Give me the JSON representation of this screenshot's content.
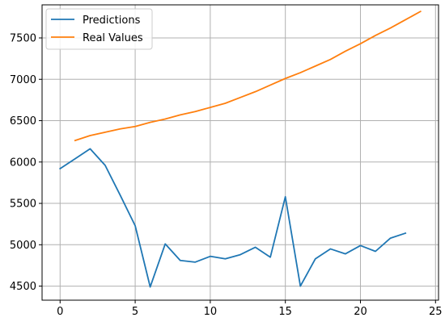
{
  "chart_data": {
    "type": "line",
    "title": "",
    "xlabel": "",
    "ylabel": "",
    "xlim": [
      -1.2,
      25.2
    ],
    "ylim": [
      4330,
      7900
    ],
    "xticks": [
      0,
      5,
      10,
      15,
      20,
      25
    ],
    "yticks": [
      4500,
      5000,
      5500,
      6000,
      6500,
      7000,
      7500
    ],
    "xtick_labels": [
      "0",
      "5",
      "10",
      "15",
      "20",
      "25"
    ],
    "ytick_labels": [
      "4500",
      "5000",
      "5500",
      "6000",
      "6500",
      "7000",
      "7500"
    ],
    "grid": true,
    "legend": {
      "placement": "top-left",
      "entries": [
        "Predictions",
        "Real Values"
      ]
    },
    "series": [
      {
        "name": "Predictions",
        "color": "#1f77b4",
        "x": [
          0,
          1,
          2,
          3,
          4,
          5,
          6,
          7,
          8,
          9,
          10,
          11,
          12,
          13,
          14,
          15,
          16,
          17,
          18,
          19,
          20,
          21,
          22,
          23
        ],
        "y": [
          5920,
          6040,
          6160,
          5960,
          5600,
          5230,
          4490,
          5010,
          4810,
          4790,
          4860,
          4830,
          4880,
          4970,
          4850,
          5580,
          4500,
          4830,
          4950,
          4890,
          4990,
          4920,
          5080,
          5140
        ]
      },
      {
        "name": "Real Values",
        "color": "#ff7f0e",
        "x": [
          1,
          2,
          3,
          4,
          5,
          6,
          7,
          8,
          9,
          10,
          11,
          12,
          13,
          14,
          15,
          16,
          17,
          18,
          19,
          20,
          21,
          22,
          23,
          24
        ],
        "y": [
          6260,
          6320,
          6360,
          6400,
          6430,
          6480,
          6520,
          6570,
          6610,
          6660,
          6710,
          6780,
          6850,
          6930,
          7010,
          7080,
          7160,
          7240,
          7340,
          7430,
          7530,
          7620,
          7720,
          7820
        ]
      }
    ]
  }
}
